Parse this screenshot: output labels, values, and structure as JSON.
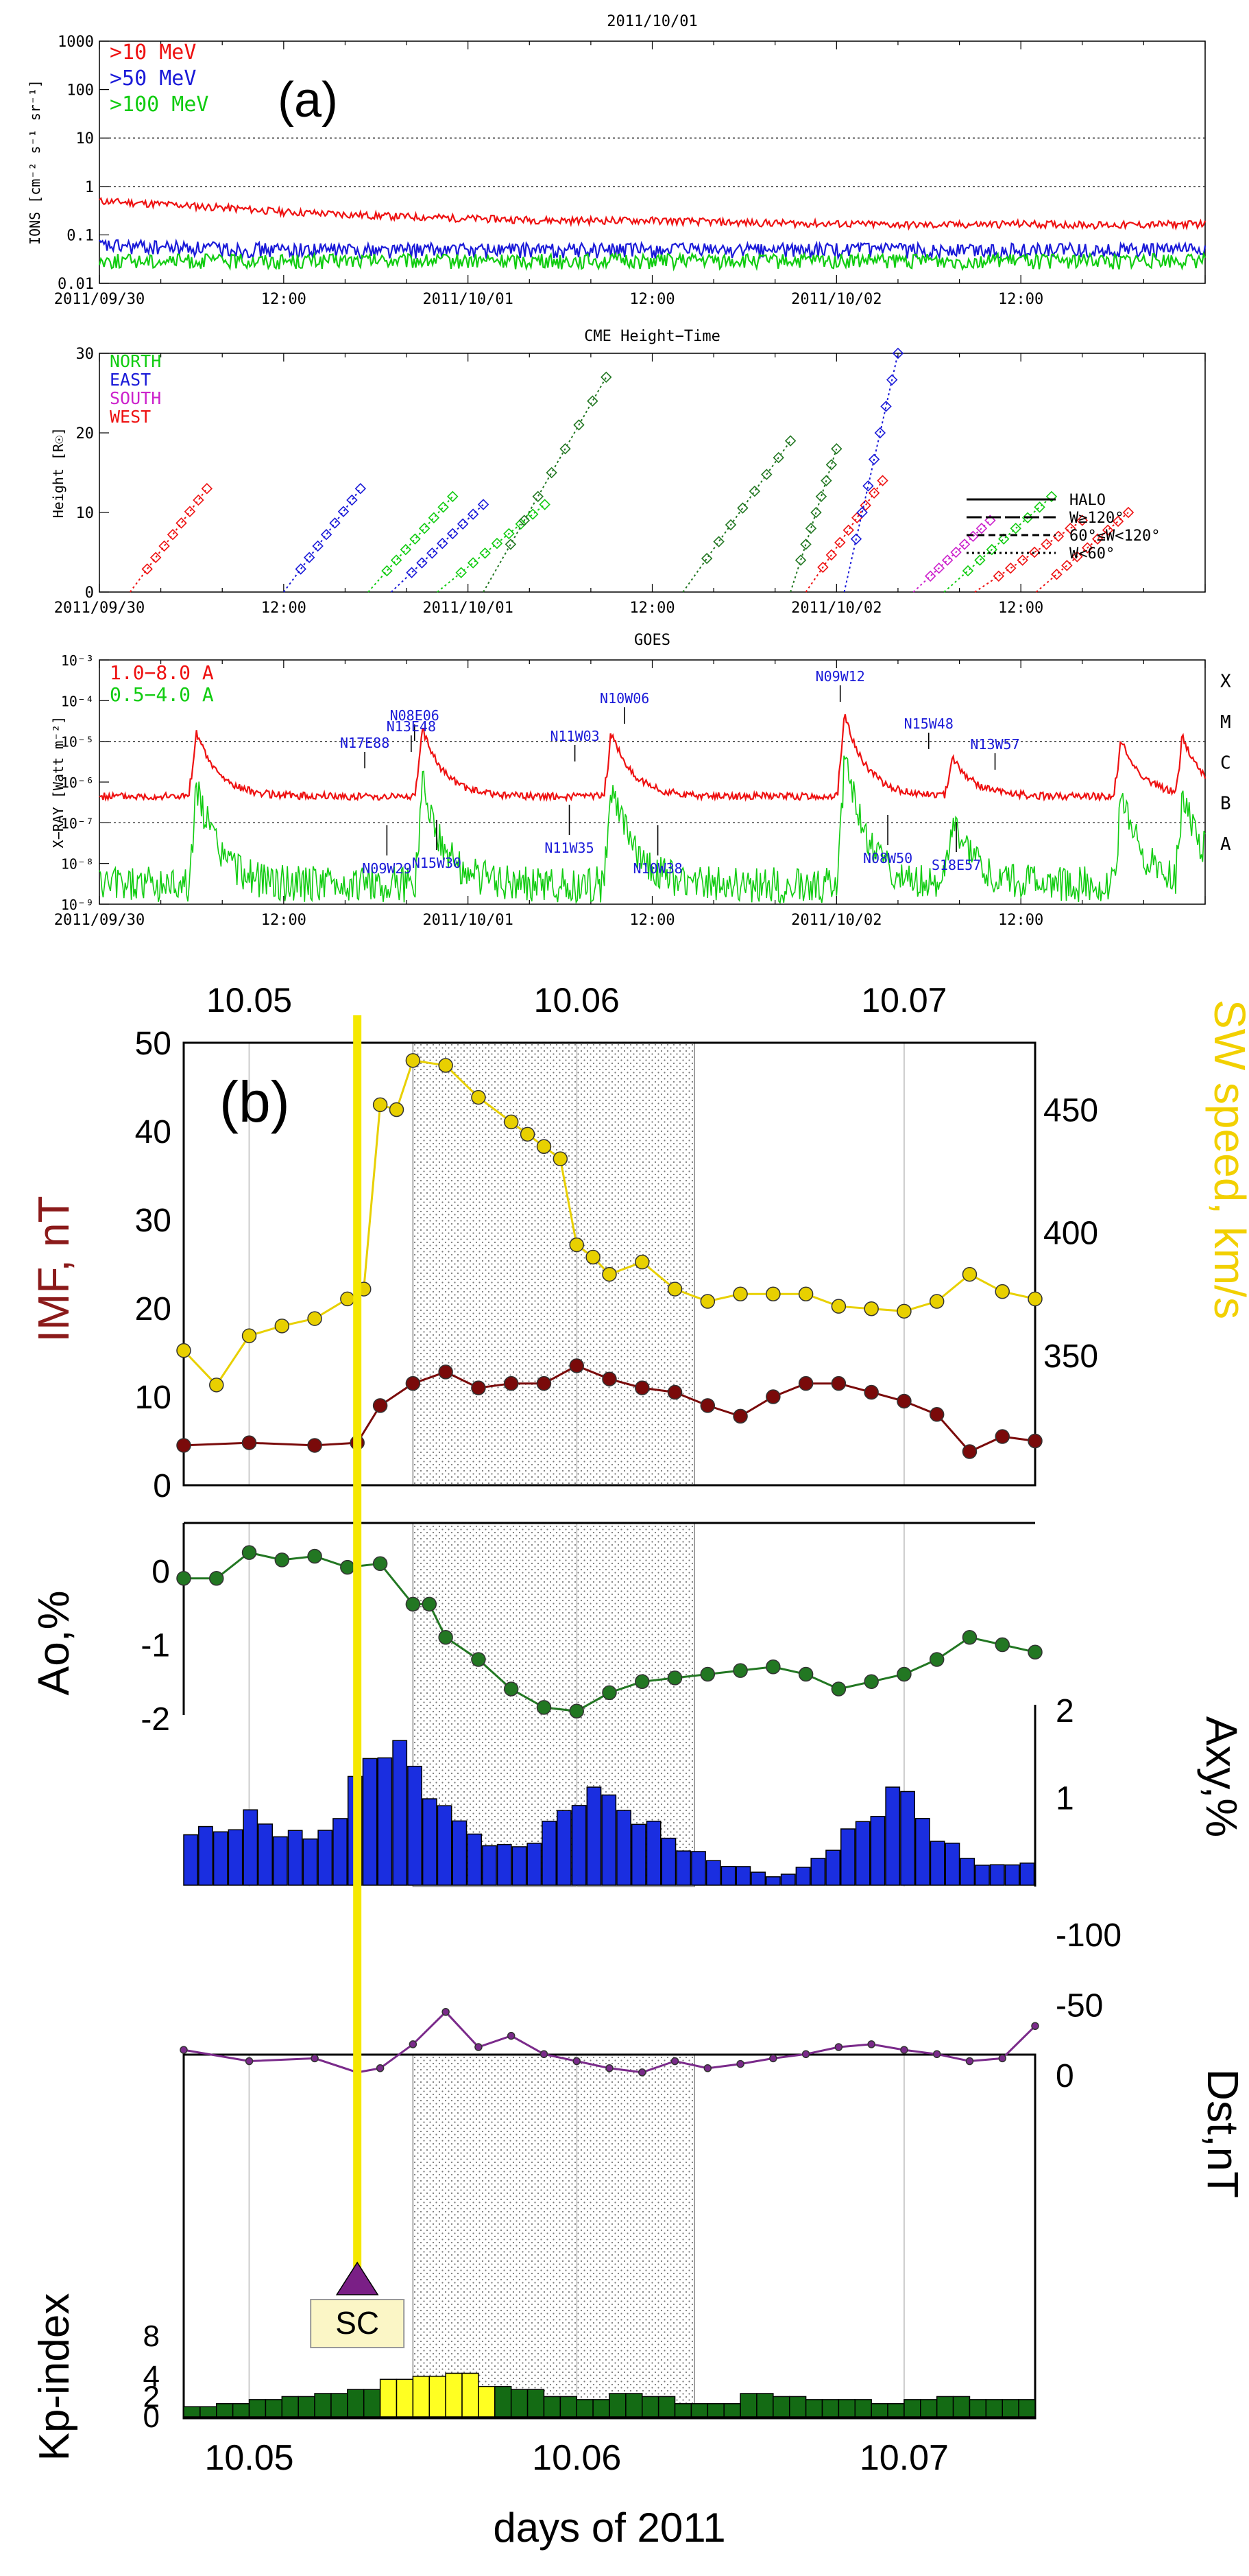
{
  "colors": {
    "red": "#ee1111",
    "blue": "#1a1ad8",
    "green": "#11cc11",
    "magenta": "#cc22cc",
    "darkgreen": "#227722",
    "darkred": "#7a0a0a",
    "yellow": "#f5e800",
    "swyellow": "#e8d000",
    "bar_blue": "#1a2ee0",
    "purple": "#7a2a8a",
    "kp_green": "#146b14",
    "kp_yellow": "#ffff22",
    "imf_label": "#8b1a1a",
    "sw_label": "#f2d000"
  },
  "panel_a": {
    "label": "(a)",
    "top_date": "2011/10/01",
    "time_ticks": [
      "2011/09/30",
      "12:00",
      "2011/10/01",
      "12:00",
      "2011/10/02",
      "12:00"
    ],
    "ions": {
      "ylabel": "IONS [cm⁻² s⁻¹ sr⁻¹]",
      "yticks": [
        "1000",
        "100",
        "10",
        "1",
        "0.1",
        "0.01"
      ],
      "legend": [
        ">10 MeV",
        ">50 MeV",
        ">100 MeV"
      ]
    },
    "cme": {
      "title": "CME Height−Time",
      "ylabel": "Height [R☉]",
      "yticks": [
        "30",
        "20",
        "10",
        "0"
      ],
      "legend_regions": [
        "NORTH",
        "EAST",
        "SOUTH",
        "WEST"
      ],
      "legend_widths": [
        "HALO",
        "W≥120°",
        "60°≤W<120°",
        "W<60°"
      ]
    },
    "goes": {
      "title": "GOES",
      "ylabel": "X−RAY [Watt m⁻²]",
      "yticks": [
        "10⁻³",
        "10⁻⁴",
        "10⁻⁵",
        "10⁻⁶",
        "10⁻⁷",
        "10⁻⁸",
        "10⁻⁹"
      ],
      "classes": [
        "X",
        "M",
        "C",
        "B",
        "A"
      ],
      "legend": [
        "1.0−8.0 A",
        "0.5−4.0 A"
      ],
      "flares": [
        {
          "label": "N17E88",
          "x": 0.24
        },
        {
          "label": "N08E06",
          "x": 0.285
        },
        {
          "label": "N13E48",
          "x": 0.282
        },
        {
          "label": "N11W03",
          "x": 0.43
        },
        {
          "label": "N10W06",
          "x": 0.475
        },
        {
          "label": "N09W12",
          "x": 0.67
        },
        {
          "label": "N15W48",
          "x": 0.75
        },
        {
          "label": "N13W57",
          "x": 0.81
        },
        {
          "label": "N09W29",
          "x": 0.26
        },
        {
          "label": "N15W30",
          "x": 0.305
        },
        {
          "label": "N11W35",
          "x": 0.425
        },
        {
          "label": "N10W38",
          "x": 0.505
        },
        {
          "label": "N08W50",
          "x": 0.713
        },
        {
          "label": "S18E57",
          "x": 0.775
        }
      ]
    }
  },
  "panel_b": {
    "label": "(b)",
    "top_ticks": [
      "10.05",
      "10.06",
      "10.07"
    ],
    "bottom_ticks": [
      "10.05",
      "10.06",
      "10.07"
    ],
    "xlabel": "days of 2011",
    "imf_label": "IMF, nT",
    "imf_ticks": [
      "50",
      "40",
      "30",
      "20",
      "10",
      "0"
    ],
    "sw_label": "SW speed, km/s",
    "sw_ticks": [
      "450",
      "400",
      "350"
    ],
    "ao_label": "Ao,%",
    "ao_ticks": [
      "0",
      "-1",
      "-2"
    ],
    "axy_label": "Axy,%",
    "axy_ticks": [
      "2",
      "1"
    ],
    "dst_label": "Dst,nT",
    "dst_ticks": [
      "0",
      "-50",
      "-100"
    ],
    "kp_label": "Kp-index",
    "kp_ticks": [
      "8",
      "4",
      "2",
      "0"
    ],
    "sc_label": "SC"
  },
  "chart_data": [
    {
      "type": "line",
      "title": "IONS (2011/10/01)",
      "x_range": [
        "2011/09/30 00:00",
        "2011/10/02 24:00"
      ],
      "yscale": "log",
      "ylim": [
        0.01,
        1000
      ],
      "series": [
        {
          "name": ">10 MeV",
          "x_hours": [
            0,
            6,
            12,
            18,
            24,
            30,
            36,
            42,
            48,
            54,
            60,
            66,
            72
          ],
          "values": [
            0.5,
            0.4,
            0.3,
            0.25,
            0.22,
            0.2,
            0.2,
            0.18,
            0.17,
            0.16,
            0.17,
            0.16,
            0.17
          ]
        },
        {
          "name": ">50 MeV",
          "x_hours": [
            0,
            6,
            12,
            18,
            24,
            30,
            36,
            42,
            48,
            54,
            60,
            66,
            72
          ],
          "values": [
            0.06,
            0.055,
            0.05,
            0.05,
            0.05,
            0.05,
            0.05,
            0.05,
            0.05,
            0.05,
            0.05,
            0.05,
            0.05
          ]
        },
        {
          "name": ">100 MeV",
          "x_hours": [
            0,
            6,
            12,
            18,
            24,
            30,
            36,
            42,
            48,
            54,
            60,
            66,
            72
          ],
          "values": [
            0.03,
            0.03,
            0.03,
            0.03,
            0.03,
            0.03,
            0.03,
            0.03,
            0.03,
            0.03,
            0.03,
            0.03,
            0.03
          ]
        }
      ]
    },
    {
      "type": "scatter",
      "title": "CME Height−Time",
      "ylabel": "Height [R☉]",
      "ylim": [
        0,
        30
      ],
      "series": [
        {
          "name": "WEST",
          "color_key": "red",
          "points": [
            [
              2,
              0
            ],
            [
              7,
              13
            ]
          ]
        },
        {
          "name": "EAST",
          "color_key": "blue",
          "points": [
            [
              12,
              0
            ],
            [
              17,
              13
            ]
          ]
        },
        {
          "name": "NORTH",
          "color_key": "green",
          "points": [
            [
              17.5,
              0
            ],
            [
              23,
              12
            ]
          ]
        },
        {
          "name": "EAST",
          "color_key": "blue",
          "points": [
            [
              19,
              0
            ],
            [
              25,
              11
            ]
          ]
        },
        {
          "name": "NORTH",
          "color_key": "green",
          "points": [
            [
              22,
              0
            ],
            [
              29,
              11
            ]
          ]
        },
        {
          "name": "NORTH",
          "color_key": "darkgreen",
          "points": [
            [
              25,
              0
            ],
            [
              33,
              27
            ]
          ]
        },
        {
          "name": "NORTH",
          "color_key": "darkgreen",
          "points": [
            [
              38,
              0
            ],
            [
              45,
              19
            ]
          ]
        },
        {
          "name": "NORTH",
          "color_key": "darkgreen",
          "points": [
            [
              45,
              0
            ],
            [
              48,
              18
            ]
          ]
        },
        {
          "name": "WEST",
          "color_key": "red",
          "points": [
            [
              46,
              0
            ],
            [
              51,
              14
            ]
          ]
        },
        {
          "name": "EAST",
          "color_key": "blue",
          "points": [
            [
              48.5,
              0
            ],
            [
              52,
              30
            ]
          ]
        },
        {
          "name": "SOUTH",
          "color_key": "magenta",
          "points": [
            [
              53,
              0
            ],
            [
              58,
              9
            ]
          ]
        },
        {
          "name": "WEST",
          "color_key": "red",
          "points": [
            [
              57,
              0
            ],
            [
              64,
              9
            ]
          ]
        },
        {
          "name": "NORTH",
          "color_key": "green",
          "points": [
            [
              55,
              0
            ],
            [
              62,
              12
            ]
          ]
        },
        {
          "name": "WEST",
          "color_key": "red",
          "points": [
            [
              61,
              0
            ],
            [
              67,
              10
            ]
          ]
        }
      ]
    },
    {
      "type": "line",
      "title": "GOES X-ray",
      "yscale": "log",
      "ylim": [
        1e-09,
        0.001
      ],
      "series": [
        {
          "name": "1.0−8.0 A",
          "approx_background": 5e-07
        },
        {
          "name": "0.5−4.0 A",
          "approx_background": 3e-09
        }
      ]
    },
    {
      "type": "line",
      "title": "IMF and SW speed",
      "x_range": [
        10.048,
        10.074
      ],
      "shaded_interval": [
        10.055,
        10.0636
      ],
      "sc_time": 10.0533,
      "series": [
        {
          "name": "IMF, nT",
          "color_key": "darkred",
          "x": [
            10.048,
            10.05,
            10.052,
            10.0533,
            10.054,
            10.055,
            10.056,
            10.057,
            10.058,
            10.059,
            10.06,
            10.061,
            10.062,
            10.063,
            10.064,
            10.065,
            10.066,
            10.067,
            10.068,
            10.069,
            10.07,
            10.071,
            10.072,
            10.073,
            10.074
          ],
          "values": [
            4.5,
            4.8,
            4.5,
            4.8,
            9.0,
            11.5,
            12.8,
            11.0,
            11.5,
            11.5,
            13.5,
            12.0,
            11.0,
            10.5,
            9.0,
            7.8,
            10.0,
            11.5,
            11.5,
            10.5,
            9.5,
            8.0,
            3.8,
            5.5,
            5.0
          ]
        },
        {
          "name": "SW speed, km/s",
          "color_key": "swyellow",
          "x": [
            10.048,
            10.049,
            10.05,
            10.051,
            10.052,
            10.053,
            10.0535,
            10.054,
            10.0545,
            10.055,
            10.056,
            10.057,
            10.058,
            10.0585,
            10.059,
            10.0595,
            10.06,
            10.0605,
            10.061,
            10.062,
            10.063,
            10.064,
            10.065,
            10.066,
            10.067,
            10.068,
            10.069,
            10.07,
            10.071,
            10.072,
            10.073,
            10.074
          ],
          "values": [
            352,
            338,
            358,
            362,
            365,
            373,
            377,
            452,
            450,
            470,
            468,
            455,
            445,
            440,
            435,
            430,
            395,
            390,
            383,
            388,
            377,
            372,
            375,
            375,
            375,
            370,
            369,
            368,
            372,
            383,
            376,
            373
          ]
        }
      ]
    },
    {
      "type": "line",
      "title": "Ao,%",
      "series": [
        {
          "name": "Ao",
          "color_key": "darkgreen",
          "x": [
            10.048,
            10.049,
            10.05,
            10.051,
            10.052,
            10.053,
            10.054,
            10.055,
            10.0555,
            10.056,
            10.057,
            10.058,
            10.059,
            10.06,
            10.061,
            10.062,
            10.063,
            10.064,
            10.065,
            10.066,
            10.067,
            10.068,
            10.069,
            10.07,
            10.071,
            10.072,
            10.073,
            10.074
          ],
          "values": [
            -0.1,
            -0.1,
            0.25,
            0.15,
            0.2,
            0.05,
            0.1,
            -0.45,
            -0.45,
            -0.9,
            -1.2,
            -1.6,
            -1.85,
            -1.9,
            -1.65,
            -1.5,
            -1.45,
            -1.4,
            -1.35,
            -1.3,
            -1.4,
            -1.6,
            -1.5,
            -1.4,
            -1.2,
            -0.9,
            -1.0,
            -1.1
          ]
        }
      ]
    },
    {
      "type": "bar",
      "title": "Axy,%",
      "x": [
        10.048,
        10.049,
        10.05,
        10.051,
        10.052,
        10.053,
        10.054,
        10.055,
        10.056,
        10.057,
        10.058,
        10.059,
        10.06,
        10.061,
        10.062,
        10.063,
        10.064,
        10.065,
        10.066,
        10.067,
        10.068,
        10.069,
        10.07,
        10.071,
        10.072,
        10.073,
        10.074
      ],
      "values": [
        0.7,
        0.6,
        0.8,
        0.6,
        0.5,
        1.0,
        1.7,
        1.4,
        0.8,
        0.6,
        0.4,
        0.6,
        1.0,
        1.0,
        0.8,
        0.5,
        0.3,
        0.2,
        0.1,
        0.2,
        0.5,
        0.8,
        1.1,
        0.6,
        0.3,
        0.2,
        0.3
      ]
    },
    {
      "type": "line",
      "title": "Dst,nT",
      "series": [
        {
          "name": "Dst",
          "color_key": "purple",
          "x": [
            10.048,
            10.05,
            10.052,
            10.0533,
            10.054,
            10.055,
            10.056,
            10.057,
            10.058,
            10.059,
            10.06,
            10.061,
            10.062,
            10.063,
            10.064,
            10.065,
            10.066,
            10.067,
            10.068,
            10.069,
            10.07,
            10.071,
            10.072,
            10.073,
            10.074
          ],
          "values": [
            -18,
            -10,
            -12,
            -2,
            -5,
            -22,
            -45,
            -20,
            -28,
            -15,
            -10,
            -5,
            -2,
            -10,
            -5,
            -8,
            -12,
            -15,
            -20,
            -22,
            -18,
            -15,
            -10,
            -12,
            -35
          ]
        }
      ]
    },
    {
      "type": "bar",
      "title": "Kp-index",
      "x": [
        10.0485,
        10.0495,
        10.0505,
        10.0515,
        10.0525,
        10.0535,
        10.0545,
        10.0555,
        10.0565,
        10.0575,
        10.0585,
        10.0595,
        10.0605,
        10.0615,
        10.0625,
        10.0635,
        10.0645,
        10.0655,
        10.0665,
        10.0675,
        10.0685,
        10.0695,
        10.0705,
        10.0715,
        10.0725,
        10.0735
      ],
      "values": [
        1,
        1.3,
        1.7,
        2,
        2.3,
        2.7,
        3.7,
        4,
        4.3,
        3,
        2.7,
        2,
        1.7,
        2.3,
        2,
        1.3,
        1.3,
        2.3,
        2,
        1.7,
        1.7,
        1.3,
        1.7,
        2,
        1.7,
        1.7
      ],
      "highlight_range": [
        10.054,
        10.0574
      ]
    }
  ]
}
